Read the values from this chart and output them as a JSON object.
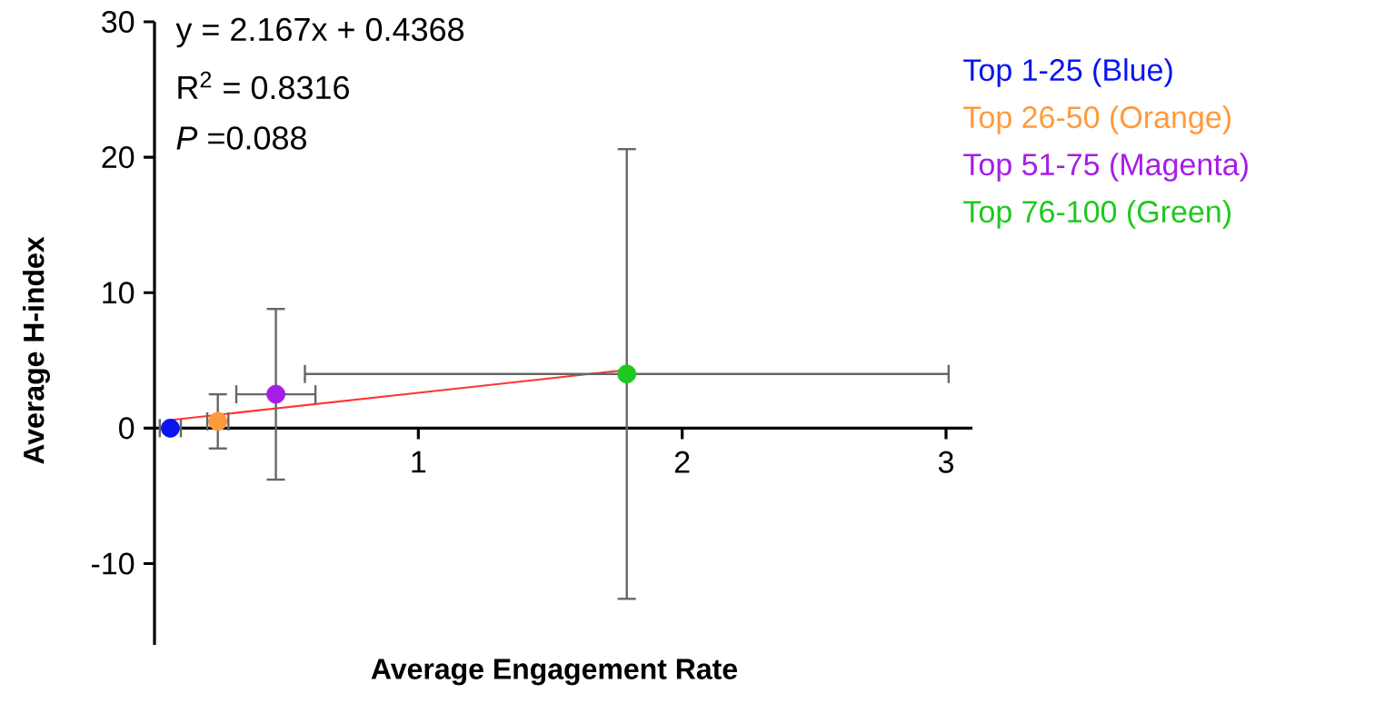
{
  "chart_data": {
    "type": "scatter",
    "xlabel": "Average Engagement Rate",
    "ylabel": "Average H-index",
    "xlim": [
      0,
      3.1
    ],
    "ylim": [
      -16,
      30
    ],
    "xticks": [
      1,
      2,
      3
    ],
    "yticks": [
      -10,
      0,
      10,
      20,
      30
    ],
    "legend": "right",
    "annotations": [
      "y = 2.167x + 0.4368",
      "R$^{2}$ = 0.8316",
      "*P* =0.088"
    ],
    "series": [
      {
        "type": "line",
        "marker": "none",
        "color": "#ff3333",
        "x": [
          0.06,
          1.79
        ],
        "values": [
          0.6,
          4.3
        ]
      },
      {
        "name": "Top 1-25 (Blue)",
        "marker": "circle",
        "color": "#0a14f0",
        "x": [
          0.06
        ],
        "values": [
          0.0
        ],
        "xerrors": [
          0.04
        ]
      },
      {
        "name": "Top 26-50 (Orange)",
        "marker": "circle",
        "color": "#ff9a3c",
        "x": [
          0.24
        ],
        "values": [
          0.5
        ],
        "errors": [
          2.0
        ],
        "xerrors": [
          0.04
        ]
      },
      {
        "name": "Top 51-75 (Magenta)",
        "marker": "circle",
        "color": "#a51ee6",
        "x": [
          0.46
        ],
        "values": [
          2.5
        ],
        "errors": [
          6.3
        ],
        "xerrors": [
          0.15
        ]
      },
      {
        "name": "Top 76-100 (Green)",
        "marker": "circle",
        "color": "#1ec81e",
        "x": [
          1.79
        ],
        "values": [
          4.0
        ],
        "errors": [
          16.6
        ],
        "xerrors": [
          1.22
        ]
      }
    ]
  }
}
